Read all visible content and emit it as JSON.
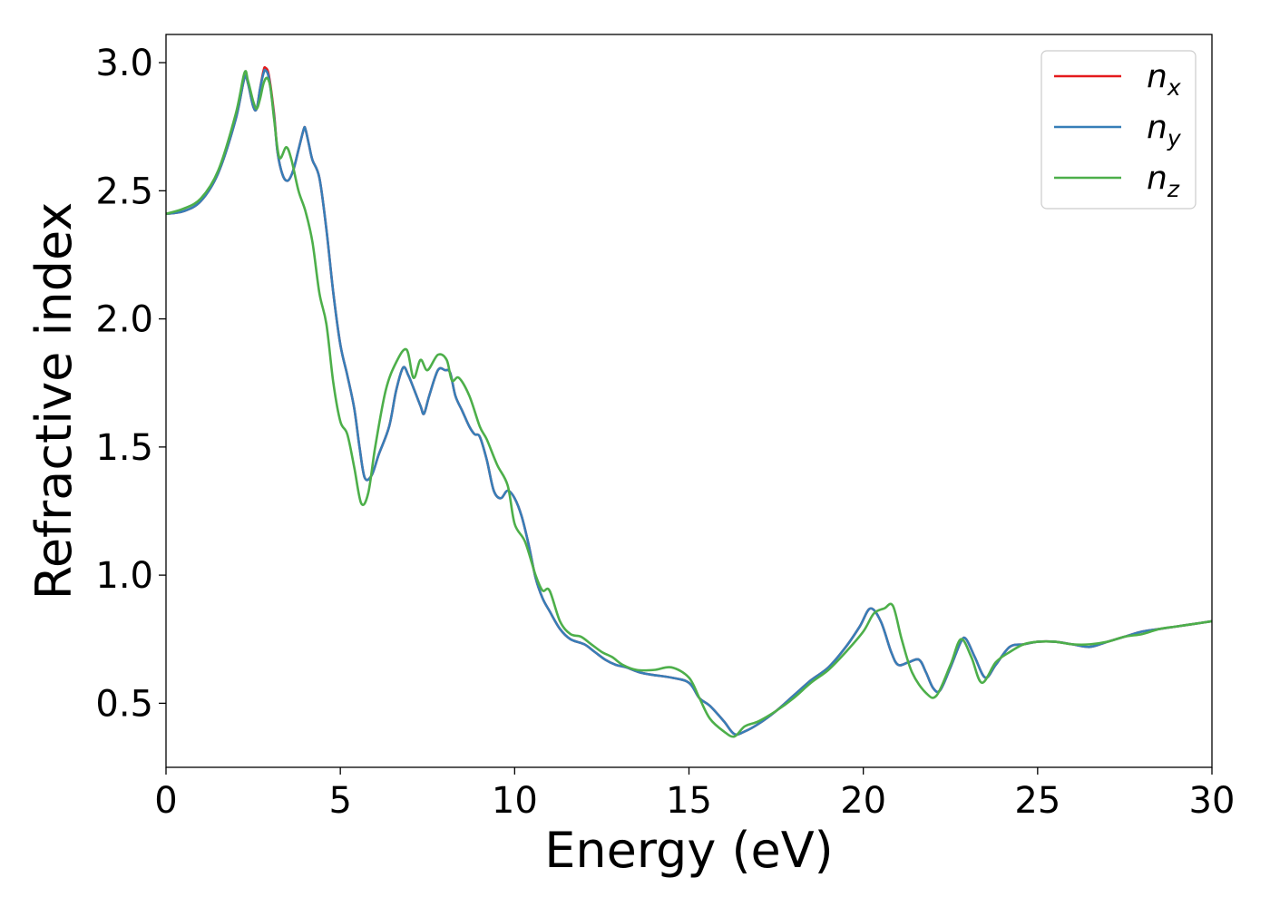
{
  "chart_data": {
    "type": "line",
    "xlabel": "Energy (eV)",
    "ylabel": "Refractive index",
    "xlim": [
      0,
      30
    ],
    "ylim": [
      0.25,
      3.11
    ],
    "xticks": [
      0,
      5,
      10,
      15,
      20,
      25,
      30
    ],
    "yticks": [
      0.5,
      1.0,
      1.5,
      2.0,
      2.5,
      3.0
    ],
    "xtick_labels": [
      "0",
      "5",
      "10",
      "15",
      "20",
      "25",
      "30"
    ],
    "ytick_labels": [
      "0.5",
      "1.0",
      "1.5",
      "2.0",
      "2.5",
      "3.0"
    ],
    "grid": false,
    "legend": {
      "position": "top-right"
    },
    "series": [
      {
        "name": "n",
        "subscript": "x",
        "color": "#e41a1c",
        "points": [
          [
            0,
            2.41
          ],
          [
            0.5,
            2.42
          ],
          [
            1.0,
            2.46
          ],
          [
            1.5,
            2.57
          ],
          [
            2.0,
            2.78
          ],
          [
            2.25,
            2.94
          ],
          [
            2.35,
            2.92
          ],
          [
            2.5,
            2.83
          ],
          [
            2.6,
            2.82
          ],
          [
            2.7,
            2.9
          ],
          [
            2.8,
            2.97
          ],
          [
            2.85,
            2.98
          ],
          [
            2.95,
            2.95
          ],
          [
            3.1,
            2.8
          ],
          [
            3.2,
            2.65
          ],
          [
            3.35,
            2.56
          ],
          [
            3.5,
            2.54
          ],
          [
            3.65,
            2.58
          ],
          [
            3.8,
            2.66
          ],
          [
            3.95,
            2.74
          ],
          [
            4.0,
            2.74
          ],
          [
            4.1,
            2.68
          ],
          [
            4.2,
            2.62
          ],
          [
            4.4,
            2.55
          ],
          [
            4.6,
            2.35
          ],
          [
            4.8,
            2.1
          ],
          [
            5.0,
            1.9
          ],
          [
            5.2,
            1.78
          ],
          [
            5.4,
            1.65
          ],
          [
            5.55,
            1.5
          ],
          [
            5.7,
            1.38
          ],
          [
            5.9,
            1.39
          ],
          [
            6.1,
            1.47
          ],
          [
            6.4,
            1.58
          ],
          [
            6.6,
            1.72
          ],
          [
            6.8,
            1.81
          ],
          [
            6.95,
            1.78
          ],
          [
            7.1,
            1.73
          ],
          [
            7.3,
            1.66
          ],
          [
            7.4,
            1.63
          ],
          [
            7.55,
            1.7
          ],
          [
            7.8,
            1.8
          ],
          [
            8.0,
            1.8
          ],
          [
            8.15,
            1.79
          ],
          [
            8.3,
            1.7
          ],
          [
            8.5,
            1.64
          ],
          [
            8.7,
            1.58
          ],
          [
            8.85,
            1.55
          ],
          [
            9.0,
            1.54
          ],
          [
            9.2,
            1.45
          ],
          [
            9.4,
            1.33
          ],
          [
            9.6,
            1.3
          ],
          [
            9.8,
            1.33
          ],
          [
            10.0,
            1.3
          ],
          [
            10.2,
            1.23
          ],
          [
            10.4,
            1.12
          ],
          [
            10.6,
            0.99
          ],
          [
            10.8,
            0.91
          ],
          [
            11.0,
            0.86
          ],
          [
            11.3,
            0.79
          ],
          [
            11.6,
            0.75
          ],
          [
            12.0,
            0.73
          ],
          [
            12.3,
            0.7
          ],
          [
            12.6,
            0.67
          ],
          [
            12.9,
            0.65
          ],
          [
            13.2,
            0.64
          ],
          [
            13.6,
            0.62
          ],
          [
            14.0,
            0.61
          ],
          [
            14.5,
            0.6
          ],
          [
            15.0,
            0.58
          ],
          [
            15.3,
            0.52
          ],
          [
            15.6,
            0.49
          ],
          [
            16.0,
            0.43
          ],
          [
            16.3,
            0.38
          ],
          [
            16.6,
            0.39
          ],
          [
            17.0,
            0.42
          ],
          [
            17.5,
            0.47
          ],
          [
            18.0,
            0.53
          ],
          [
            18.5,
            0.59
          ],
          [
            19.0,
            0.64
          ],
          [
            19.5,
            0.72
          ],
          [
            19.9,
            0.8
          ],
          [
            20.2,
            0.87
          ],
          [
            20.5,
            0.82
          ],
          [
            20.8,
            0.7
          ],
          [
            21.0,
            0.65
          ],
          [
            21.3,
            0.66
          ],
          [
            21.6,
            0.67
          ],
          [
            21.8,
            0.62
          ],
          [
            22.0,
            0.56
          ],
          [
            22.2,
            0.55
          ],
          [
            22.5,
            0.64
          ],
          [
            22.8,
            0.74
          ],
          [
            22.95,
            0.75
          ],
          [
            23.2,
            0.68
          ],
          [
            23.5,
            0.6
          ],
          [
            23.8,
            0.65
          ],
          [
            24.2,
            0.72
          ],
          [
            24.6,
            0.73
          ],
          [
            25.0,
            0.74
          ],
          [
            25.5,
            0.74
          ],
          [
            26.0,
            0.73
          ],
          [
            26.5,
            0.72
          ],
          [
            27.0,
            0.74
          ],
          [
            27.5,
            0.76
          ],
          [
            28.0,
            0.78
          ],
          [
            28.5,
            0.79
          ],
          [
            29.0,
            0.8
          ],
          [
            29.5,
            0.81
          ],
          [
            30.0,
            0.82
          ]
        ]
      },
      {
        "name": "n",
        "subscript": "y",
        "color": "#377eb8",
        "points": [
          [
            0,
            2.41
          ],
          [
            0.5,
            2.42
          ],
          [
            1.0,
            2.46
          ],
          [
            1.5,
            2.57
          ],
          [
            2.0,
            2.78
          ],
          [
            2.25,
            2.94
          ],
          [
            2.35,
            2.92
          ],
          [
            2.5,
            2.83
          ],
          [
            2.6,
            2.82
          ],
          [
            2.7,
            2.9
          ],
          [
            2.8,
            2.96
          ],
          [
            2.85,
            2.97
          ],
          [
            2.95,
            2.94
          ],
          [
            3.1,
            2.79
          ],
          [
            3.2,
            2.65
          ],
          [
            3.35,
            2.56
          ],
          [
            3.5,
            2.54
          ],
          [
            3.65,
            2.58
          ],
          [
            3.8,
            2.66
          ],
          [
            3.95,
            2.74
          ],
          [
            4.0,
            2.74
          ],
          [
            4.1,
            2.68
          ],
          [
            4.2,
            2.62
          ],
          [
            4.4,
            2.55
          ],
          [
            4.6,
            2.35
          ],
          [
            4.8,
            2.1
          ],
          [
            5.0,
            1.9
          ],
          [
            5.2,
            1.78
          ],
          [
            5.4,
            1.65
          ],
          [
            5.55,
            1.5
          ],
          [
            5.7,
            1.38
          ],
          [
            5.9,
            1.39
          ],
          [
            6.1,
            1.47
          ],
          [
            6.4,
            1.58
          ],
          [
            6.6,
            1.72
          ],
          [
            6.8,
            1.81
          ],
          [
            6.95,
            1.78
          ],
          [
            7.1,
            1.73
          ],
          [
            7.3,
            1.66
          ],
          [
            7.4,
            1.63
          ],
          [
            7.55,
            1.7
          ],
          [
            7.8,
            1.8
          ],
          [
            8.0,
            1.8
          ],
          [
            8.15,
            1.79
          ],
          [
            8.3,
            1.7
          ],
          [
            8.5,
            1.64
          ],
          [
            8.7,
            1.58
          ],
          [
            8.85,
            1.55
          ],
          [
            9.0,
            1.54
          ],
          [
            9.2,
            1.45
          ],
          [
            9.4,
            1.33
          ],
          [
            9.6,
            1.3
          ],
          [
            9.8,
            1.33
          ],
          [
            10.0,
            1.3
          ],
          [
            10.2,
            1.23
          ],
          [
            10.4,
            1.12
          ],
          [
            10.6,
            0.99
          ],
          [
            10.8,
            0.91
          ],
          [
            11.0,
            0.86
          ],
          [
            11.3,
            0.79
          ],
          [
            11.6,
            0.75
          ],
          [
            12.0,
            0.73
          ],
          [
            12.3,
            0.7
          ],
          [
            12.6,
            0.67
          ],
          [
            12.9,
            0.65
          ],
          [
            13.2,
            0.64
          ],
          [
            13.6,
            0.62
          ],
          [
            14.0,
            0.61
          ],
          [
            14.5,
            0.6
          ],
          [
            15.0,
            0.58
          ],
          [
            15.3,
            0.52
          ],
          [
            15.6,
            0.49
          ],
          [
            16.0,
            0.43
          ],
          [
            16.3,
            0.38
          ],
          [
            16.6,
            0.39
          ],
          [
            17.0,
            0.42
          ],
          [
            17.5,
            0.47
          ],
          [
            18.0,
            0.53
          ],
          [
            18.5,
            0.59
          ],
          [
            19.0,
            0.64
          ],
          [
            19.5,
            0.72
          ],
          [
            19.9,
            0.8
          ],
          [
            20.2,
            0.87
          ],
          [
            20.5,
            0.82
          ],
          [
            20.8,
            0.7
          ],
          [
            21.0,
            0.65
          ],
          [
            21.3,
            0.66
          ],
          [
            21.6,
            0.67
          ],
          [
            21.8,
            0.62
          ],
          [
            22.0,
            0.56
          ],
          [
            22.2,
            0.55
          ],
          [
            22.5,
            0.64
          ],
          [
            22.8,
            0.74
          ],
          [
            22.95,
            0.75
          ],
          [
            23.2,
            0.68
          ],
          [
            23.5,
            0.6
          ],
          [
            23.8,
            0.65
          ],
          [
            24.2,
            0.72
          ],
          [
            24.6,
            0.73
          ],
          [
            25.0,
            0.74
          ],
          [
            25.5,
            0.74
          ],
          [
            26.0,
            0.73
          ],
          [
            26.5,
            0.72
          ],
          [
            27.0,
            0.74
          ],
          [
            27.5,
            0.76
          ],
          [
            28.0,
            0.78
          ],
          [
            28.5,
            0.79
          ],
          [
            29.0,
            0.8
          ],
          [
            29.5,
            0.81
          ],
          [
            30.0,
            0.82
          ]
        ]
      },
      {
        "name": "n",
        "subscript": "z",
        "color": "#4daf4a",
        "points": [
          [
            0,
            2.41
          ],
          [
            0.5,
            2.43
          ],
          [
            1.0,
            2.47
          ],
          [
            1.5,
            2.58
          ],
          [
            2.0,
            2.8
          ],
          [
            2.25,
            2.96
          ],
          [
            2.35,
            2.93
          ],
          [
            2.5,
            2.85
          ],
          [
            2.6,
            2.82
          ],
          [
            2.7,
            2.86
          ],
          [
            2.8,
            2.92
          ],
          [
            2.9,
            2.94
          ],
          [
            3.0,
            2.9
          ],
          [
            3.1,
            2.78
          ],
          [
            3.25,
            2.63
          ],
          [
            3.45,
            2.67
          ],
          [
            3.6,
            2.62
          ],
          [
            3.8,
            2.5
          ],
          [
            4.0,
            2.42
          ],
          [
            4.2,
            2.3
          ],
          [
            4.4,
            2.1
          ],
          [
            4.6,
            1.98
          ],
          [
            4.8,
            1.75
          ],
          [
            5.0,
            1.6
          ],
          [
            5.2,
            1.55
          ],
          [
            5.4,
            1.42
          ],
          [
            5.6,
            1.28
          ],
          [
            5.8,
            1.32
          ],
          [
            6.0,
            1.5
          ],
          [
            6.3,
            1.72
          ],
          [
            6.6,
            1.83
          ],
          [
            6.9,
            1.88
          ],
          [
            7.1,
            1.77
          ],
          [
            7.3,
            1.84
          ],
          [
            7.5,
            1.8
          ],
          [
            7.8,
            1.86
          ],
          [
            8.05,
            1.84
          ],
          [
            8.2,
            1.76
          ],
          [
            8.4,
            1.77
          ],
          [
            8.7,
            1.7
          ],
          [
            9.0,
            1.58
          ],
          [
            9.2,
            1.53
          ],
          [
            9.5,
            1.43
          ],
          [
            9.8,
            1.35
          ],
          [
            10.0,
            1.2
          ],
          [
            10.3,
            1.13
          ],
          [
            10.6,
            1.0
          ],
          [
            10.8,
            0.94
          ],
          [
            11.0,
            0.94
          ],
          [
            11.3,
            0.82
          ],
          [
            11.6,
            0.77
          ],
          [
            11.9,
            0.76
          ],
          [
            12.2,
            0.73
          ],
          [
            12.5,
            0.7
          ],
          [
            12.8,
            0.68
          ],
          [
            13.1,
            0.65
          ],
          [
            13.5,
            0.63
          ],
          [
            14.0,
            0.63
          ],
          [
            14.5,
            0.64
          ],
          [
            15.0,
            0.6
          ],
          [
            15.3,
            0.52
          ],
          [
            15.6,
            0.44
          ],
          [
            16.0,
            0.39
          ],
          [
            16.3,
            0.37
          ],
          [
            16.6,
            0.41
          ],
          [
            17.0,
            0.43
          ],
          [
            17.5,
            0.47
          ],
          [
            18.0,
            0.52
          ],
          [
            18.5,
            0.58
          ],
          [
            19.0,
            0.63
          ],
          [
            19.5,
            0.7
          ],
          [
            20.0,
            0.78
          ],
          [
            20.3,
            0.85
          ],
          [
            20.6,
            0.87
          ],
          [
            20.85,
            0.88
          ],
          [
            21.1,
            0.75
          ],
          [
            21.4,
            0.62
          ],
          [
            21.8,
            0.54
          ],
          [
            22.1,
            0.53
          ],
          [
            22.5,
            0.65
          ],
          [
            22.8,
            0.75
          ],
          [
            23.1,
            0.68
          ],
          [
            23.4,
            0.58
          ],
          [
            23.8,
            0.66
          ],
          [
            24.2,
            0.7
          ],
          [
            24.6,
            0.73
          ],
          [
            25.0,
            0.74
          ],
          [
            25.5,
            0.74
          ],
          [
            26.0,
            0.73
          ],
          [
            26.5,
            0.73
          ],
          [
            27.0,
            0.74
          ],
          [
            27.5,
            0.76
          ],
          [
            28.0,
            0.77
          ],
          [
            28.5,
            0.79
          ],
          [
            29.0,
            0.8
          ],
          [
            29.5,
            0.81
          ],
          [
            30.0,
            0.82
          ]
        ]
      }
    ]
  }
}
